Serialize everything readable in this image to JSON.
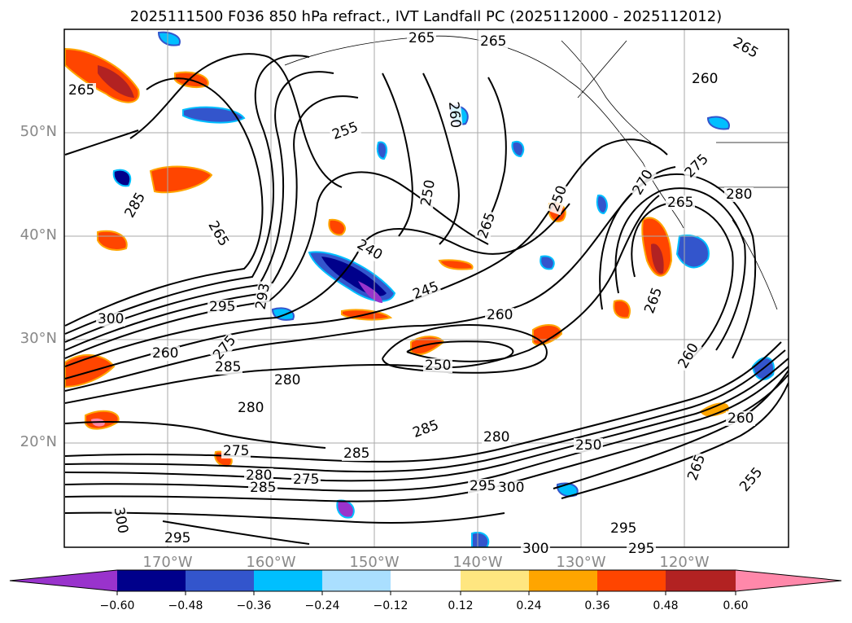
{
  "title": "2025111500 F036 850 hPa refract., IVT Landfall PC (2025112000 - 2025112012)",
  "latitude_labels": [
    "50°N",
    "40°N",
    "30°N",
    "20°N"
  ],
  "longitude_labels": [
    "170°W",
    "160°W",
    "150°W",
    "140°W",
    "130°W",
    "120°W"
  ],
  "contour_labels": [
    "265",
    "265",
    "265",
    "260",
    "265",
    "255",
    "250",
    "260",
    "250",
    "265",
    "270",
    "280",
    "275",
    "265",
    "285",
    "240",
    "245",
    "265",
    "293",
    "295",
    "300",
    "275",
    "285",
    "260",
    "280",
    "260",
    "250",
    "265",
    "280",
    "280",
    "275",
    "285",
    "280",
    "250",
    "285",
    "275",
    "285",
    "295",
    "300",
    "300",
    "295",
    "295",
    "300",
    "295",
    "265",
    "255",
    "260",
    "260"
  ],
  "colorbar": {
    "ticks": [
      "−0.60",
      "−0.48",
      "−0.36",
      "−0.24",
      "−0.12",
      "0.12",
      "0.24",
      "0.36",
      "0.48",
      "0.60"
    ],
    "colors": [
      "#9933cc",
      "#00008b",
      "#3355cc",
      "#00bfff",
      "#aadfff",
      "#ffffff",
      "#ffe680",
      "#ffa500",
      "#ff4500",
      "#b22222",
      "#ff88aa"
    ]
  }
}
